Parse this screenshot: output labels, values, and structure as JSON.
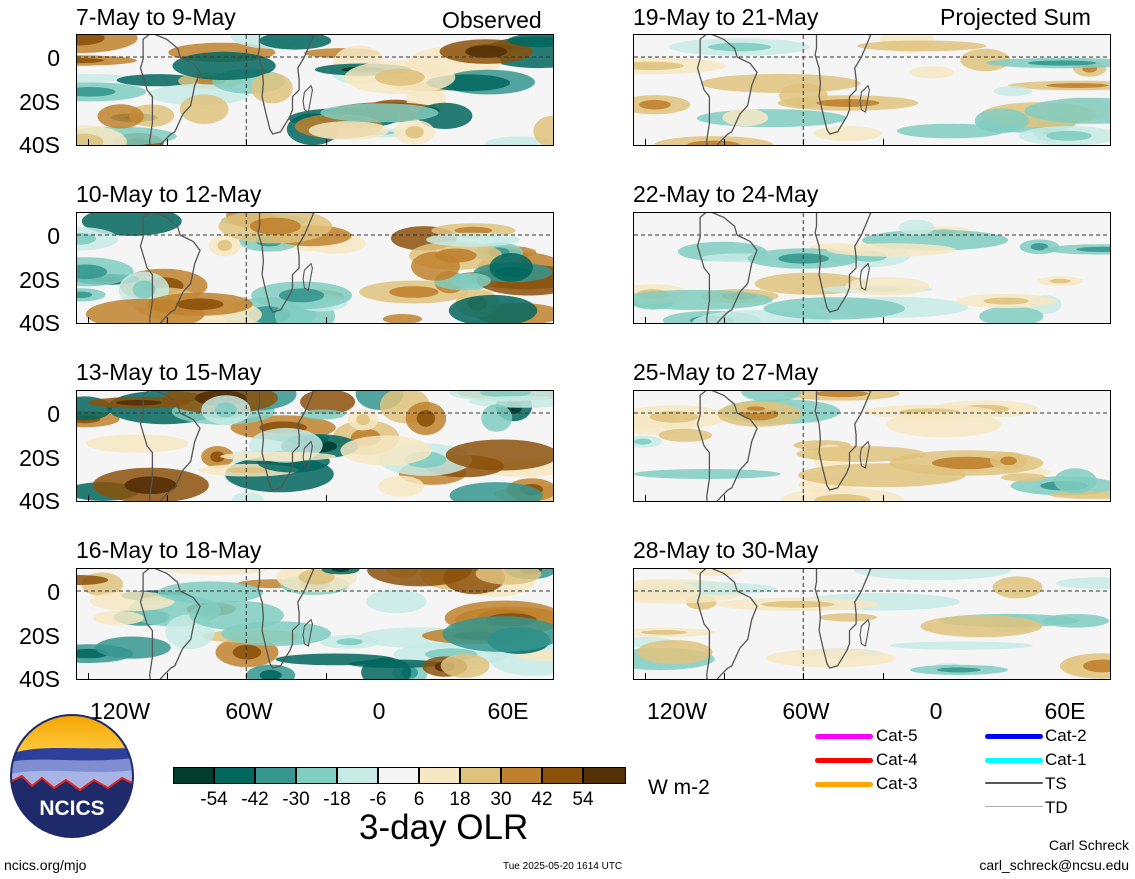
{
  "panels": [
    {
      "id": "p1",
      "title": "7-May to 9-May",
      "tag": "Observed"
    },
    {
      "id": "p2",
      "title": "10-May to 12-May",
      "tag": ""
    },
    {
      "id": "p3",
      "title": "13-May to 15-May",
      "tag": ""
    },
    {
      "id": "p4",
      "title": "16-May to 18-May",
      "tag": ""
    },
    {
      "id": "p5",
      "title": "19-May to 21-May",
      "tag": "Projected Sum"
    },
    {
      "id": "p6",
      "title": "22-May to 24-May",
      "tag": ""
    },
    {
      "id": "p7",
      "title": "25-May to 27-May",
      "tag": ""
    },
    {
      "id": "p8",
      "title": "28-May to 30-May",
      "tag": ""
    }
  ],
  "lat_labels": [
    "0",
    "20S",
    "40S"
  ],
  "lon_labels": [
    "120W",
    "60W",
    "0",
    "60E"
  ],
  "colorbar": {
    "colors": [
      "#003c30",
      "#01665e",
      "#35978f",
      "#80cdc1",
      "#c7eae5",
      "#f5f5f5",
      "#f6e8c3",
      "#dfc27d",
      "#bf812d",
      "#8c510a",
      "#543005"
    ],
    "labels": [
      "-54",
      "-42",
      "-30",
      "-18",
      "-6",
      "6",
      "18",
      "30",
      "42",
      "54"
    ],
    "units": "W m-2",
    "title": "3-day OLR"
  },
  "legend": [
    {
      "label": "Cat-5",
      "color": "#ff00ff"
    },
    {
      "label": "Cat-4",
      "color": "#ff0000"
    },
    {
      "label": "Cat-3",
      "color": "#ffa500"
    },
    {
      "label": "Cat-2",
      "color": "#0000ff"
    },
    {
      "label": "Cat-1",
      "color": "#00ffff"
    },
    {
      "label": "TS",
      "color": "#555555"
    },
    {
      "label": "TD",
      "color": "#aaaaaa"
    }
  ],
  "logo_text": "NCICS",
  "footer": {
    "left": "ncics.org/mjo",
    "center": "Tue 2025-05-20 1614 UTC",
    "author": "Carl Schreck",
    "email": "carl_schreck@ncsu.edu"
  }
}
